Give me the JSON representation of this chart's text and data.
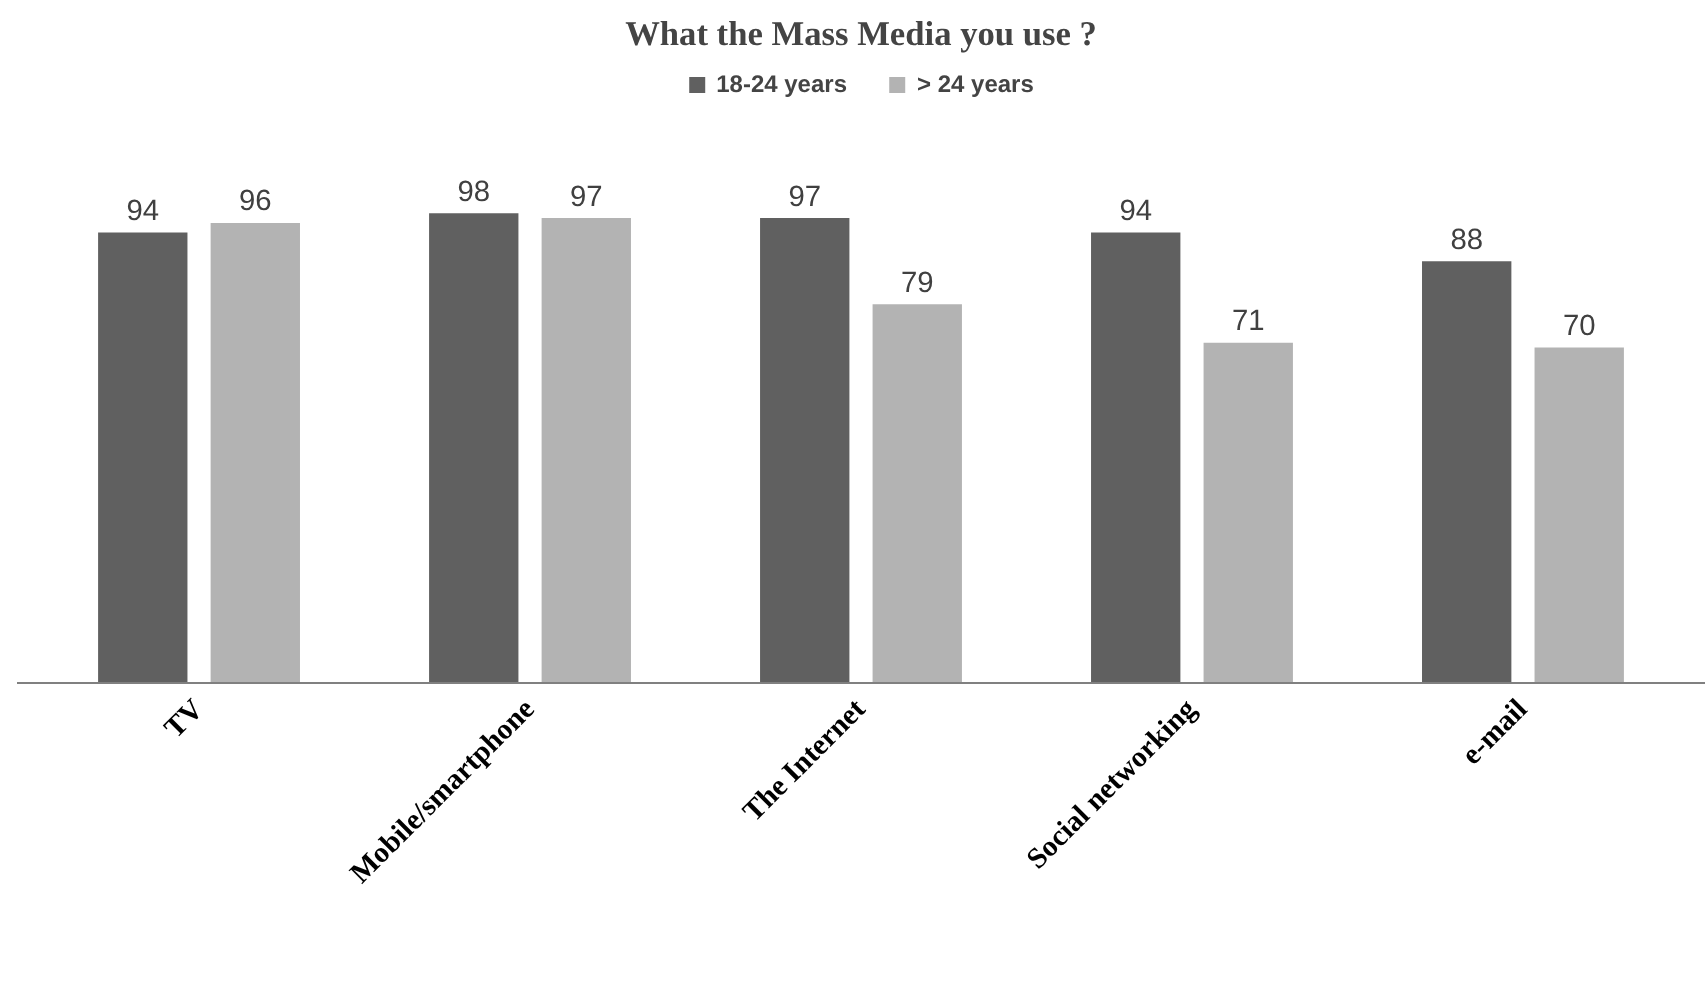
{
  "chart_data": {
    "type": "bar",
    "title": "What the Mass Media you use ?",
    "categories": [
      "TV",
      "Mobile/smartphone",
      "The Internet",
      "Social networking",
      "e-mail"
    ],
    "series": [
      {
        "name": "18-24 years",
        "color": "#606060",
        "values": [
          94,
          98,
          97,
          94,
          88
        ]
      },
      {
        "name": "> 24 years",
        "color": "#b3b3b3",
        "values": [
          96,
          97,
          79,
          71,
          70
        ]
      }
    ],
    "data_labels": true,
    "legend": "top"
  }
}
